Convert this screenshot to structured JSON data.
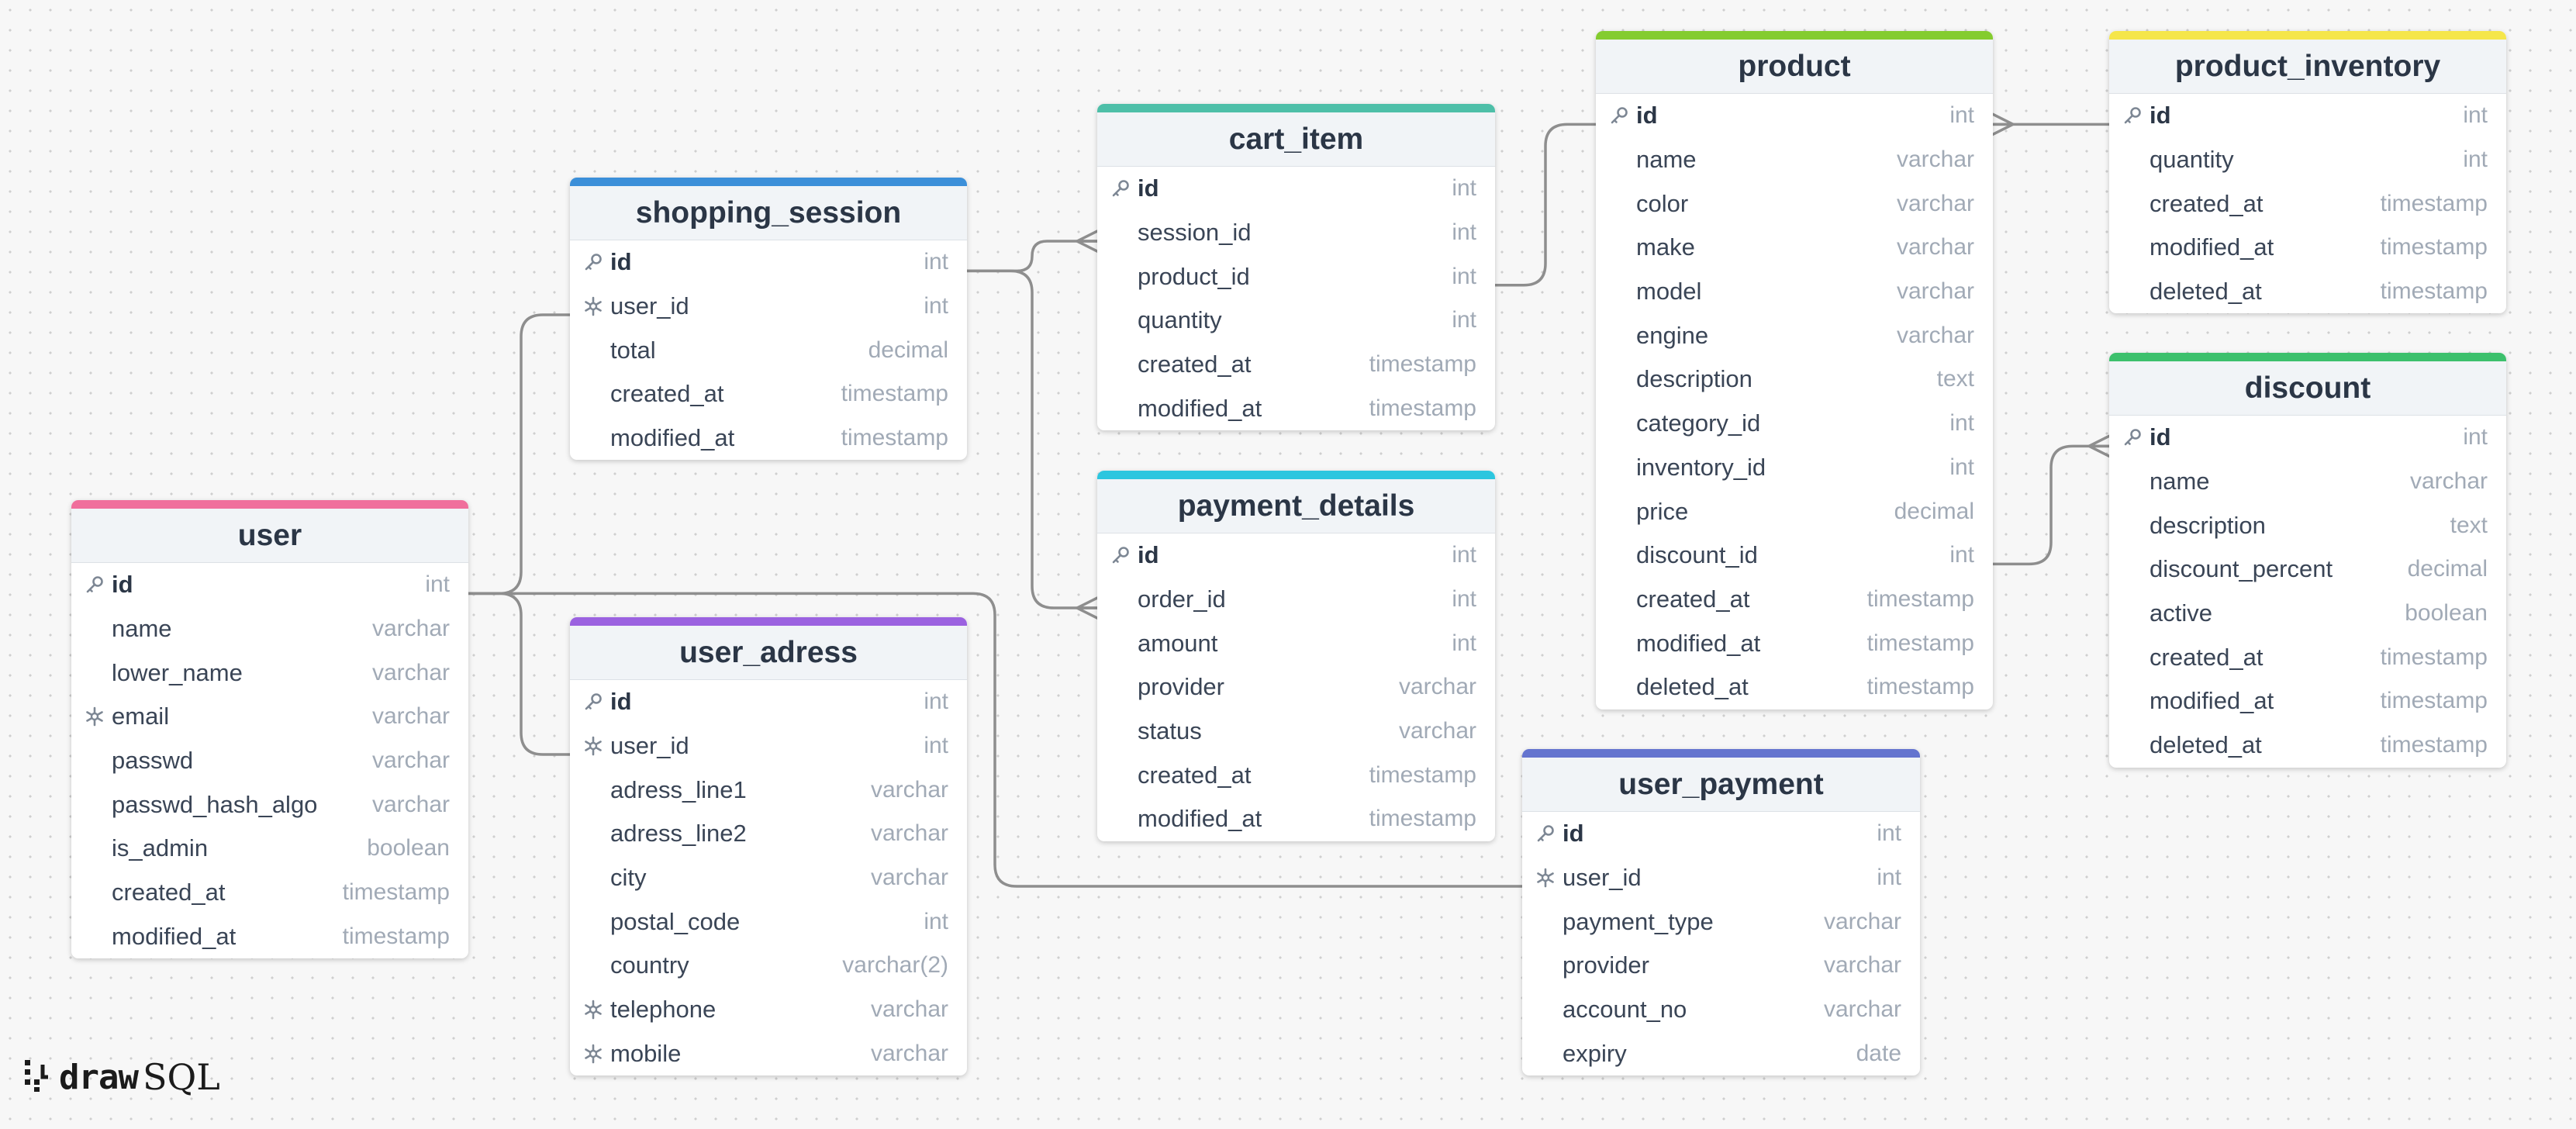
{
  "tables": [
    {
      "name": "user",
      "accent": "#f06f9c",
      "columns": [
        {
          "name": "id",
          "type": "int",
          "key": "pk"
        },
        {
          "name": "name",
          "type": "varchar",
          "key": ""
        },
        {
          "name": "lower_name",
          "type": "varchar",
          "key": ""
        },
        {
          "name": "email",
          "type": "varchar",
          "key": "idx"
        },
        {
          "name": "passwd",
          "type": "varchar",
          "key": ""
        },
        {
          "name": "passwd_hash_algo",
          "type": "varchar",
          "key": ""
        },
        {
          "name": "is_admin",
          "type": "boolean",
          "key": ""
        },
        {
          "name": "created_at",
          "type": "timestamp",
          "key": ""
        },
        {
          "name": "modified_at",
          "type": "timestamp",
          "key": ""
        }
      ]
    },
    {
      "name": "shopping_session",
      "accent": "#3b8fd9",
      "columns": [
        {
          "name": "id",
          "type": "int",
          "key": "pk"
        },
        {
          "name": "user_id",
          "type": "int",
          "key": "idx"
        },
        {
          "name": "total",
          "type": "decimal",
          "key": ""
        },
        {
          "name": "created_at",
          "type": "timestamp",
          "key": ""
        },
        {
          "name": "modified_at",
          "type": "timestamp",
          "key": ""
        }
      ]
    },
    {
      "name": "user_adress",
      "accent": "#9b62e0",
      "columns": [
        {
          "name": "id",
          "type": "int",
          "key": "pk"
        },
        {
          "name": "user_id",
          "type": "int",
          "key": "idx"
        },
        {
          "name": "adress_line1",
          "type": "varchar",
          "key": ""
        },
        {
          "name": "adress_line2",
          "type": "varchar",
          "key": ""
        },
        {
          "name": "city",
          "type": "varchar",
          "key": ""
        },
        {
          "name": "postal_code",
          "type": "int",
          "key": ""
        },
        {
          "name": "country",
          "type": "varchar(2)",
          "key": ""
        },
        {
          "name": "telephone",
          "type": "varchar",
          "key": "idx"
        },
        {
          "name": "mobile",
          "type": "varchar",
          "key": "idx"
        }
      ]
    },
    {
      "name": "cart_item",
      "accent": "#4dbfa8",
      "columns": [
        {
          "name": "id",
          "type": "int",
          "key": "pk"
        },
        {
          "name": "session_id",
          "type": "int",
          "key": ""
        },
        {
          "name": "product_id",
          "type": "int",
          "key": ""
        },
        {
          "name": "quantity",
          "type": "int",
          "key": ""
        },
        {
          "name": "created_at",
          "type": "timestamp",
          "key": ""
        },
        {
          "name": "modified_at",
          "type": "timestamp",
          "key": ""
        }
      ]
    },
    {
      "name": "payment_details",
      "accent": "#2cc6df",
      "columns": [
        {
          "name": "id",
          "type": "int",
          "key": "pk"
        },
        {
          "name": "order_id",
          "type": "int",
          "key": ""
        },
        {
          "name": "amount",
          "type": "int",
          "key": ""
        },
        {
          "name": "provider",
          "type": "varchar",
          "key": ""
        },
        {
          "name": "status",
          "type": "varchar",
          "key": ""
        },
        {
          "name": "created_at",
          "type": "timestamp",
          "key": ""
        },
        {
          "name": "modified_at",
          "type": "timestamp",
          "key": ""
        }
      ]
    },
    {
      "name": "product",
      "accent": "#84cc2f",
      "columns": [
        {
          "name": "id",
          "type": "int",
          "key": "pk"
        },
        {
          "name": "name",
          "type": "varchar",
          "key": ""
        },
        {
          "name": "color",
          "type": "varchar",
          "key": ""
        },
        {
          "name": "make",
          "type": "varchar",
          "key": ""
        },
        {
          "name": "model",
          "type": "varchar",
          "key": ""
        },
        {
          "name": "engine",
          "type": "varchar",
          "key": ""
        },
        {
          "name": "description",
          "type": "text",
          "key": ""
        },
        {
          "name": "category_id",
          "type": "int",
          "key": ""
        },
        {
          "name": "inventory_id",
          "type": "int",
          "key": ""
        },
        {
          "name": "price",
          "type": "decimal",
          "key": ""
        },
        {
          "name": "discount_id",
          "type": "int",
          "key": ""
        },
        {
          "name": "created_at",
          "type": "timestamp",
          "key": ""
        },
        {
          "name": "modified_at",
          "type": "timestamp",
          "key": ""
        },
        {
          "name": "deleted_at",
          "type": "timestamp",
          "key": ""
        }
      ]
    },
    {
      "name": "user_payment",
      "accent": "#6474cf",
      "columns": [
        {
          "name": "id",
          "type": "int",
          "key": "pk"
        },
        {
          "name": "user_id",
          "type": "int",
          "key": "idx"
        },
        {
          "name": "payment_type",
          "type": "varchar",
          "key": ""
        },
        {
          "name": "provider",
          "type": "varchar",
          "key": ""
        },
        {
          "name": "account_no",
          "type": "varchar",
          "key": ""
        },
        {
          "name": "expiry",
          "type": "date",
          "key": ""
        }
      ]
    },
    {
      "name": "product_inventory",
      "accent": "#f5e64a",
      "columns": [
        {
          "name": "id",
          "type": "int",
          "key": "pk"
        },
        {
          "name": "quantity",
          "type": "int",
          "key": ""
        },
        {
          "name": "created_at",
          "type": "timestamp",
          "key": ""
        },
        {
          "name": "modified_at",
          "type": "timestamp",
          "key": ""
        },
        {
          "name": "deleted_at",
          "type": "timestamp",
          "key": ""
        }
      ]
    },
    {
      "name": "discount",
      "accent": "#3cc06c",
      "columns": [
        {
          "name": "id",
          "type": "int",
          "key": "pk"
        },
        {
          "name": "name",
          "type": "varchar",
          "key": ""
        },
        {
          "name": "description",
          "type": "text",
          "key": ""
        },
        {
          "name": "discount_percent",
          "type": "decimal",
          "key": ""
        },
        {
          "name": "active",
          "type": "boolean",
          "key": ""
        },
        {
          "name": "created_at",
          "type": "timestamp",
          "key": ""
        },
        {
          "name": "modified_at",
          "type": "timestamp",
          "key": ""
        },
        {
          "name": "deleted_at",
          "type": "timestamp",
          "key": ""
        }
      ]
    }
  ],
  "relations": [
    {
      "from": "user.id",
      "to": "shopping_session.user_id",
      "cardinality": "one-to-one"
    },
    {
      "from": "user.id",
      "to": "user_adress.user_id",
      "cardinality": "one-to-one"
    },
    {
      "from": "user.id",
      "to": "user_payment.user_id",
      "cardinality": "one-to-one"
    },
    {
      "from": "shopping_session.id",
      "to": "cart_item.session_id",
      "cardinality": "one-to-many"
    },
    {
      "from": "shopping_session.id",
      "to": "payment_details.order_id",
      "cardinality": "one-to-many"
    },
    {
      "from": "cart_item.product_id",
      "to": "product.id",
      "cardinality": "one-to-one"
    },
    {
      "from": "product.id",
      "to": "product_inventory.id",
      "cardinality": "many-to-one"
    },
    {
      "from": "product.discount_id",
      "to": "discount.id",
      "cardinality": "one-to-many"
    }
  ],
  "brand": {
    "draw": "draw",
    "sql": "SQL",
    "icon": "drawsql-logo-icon"
  }
}
